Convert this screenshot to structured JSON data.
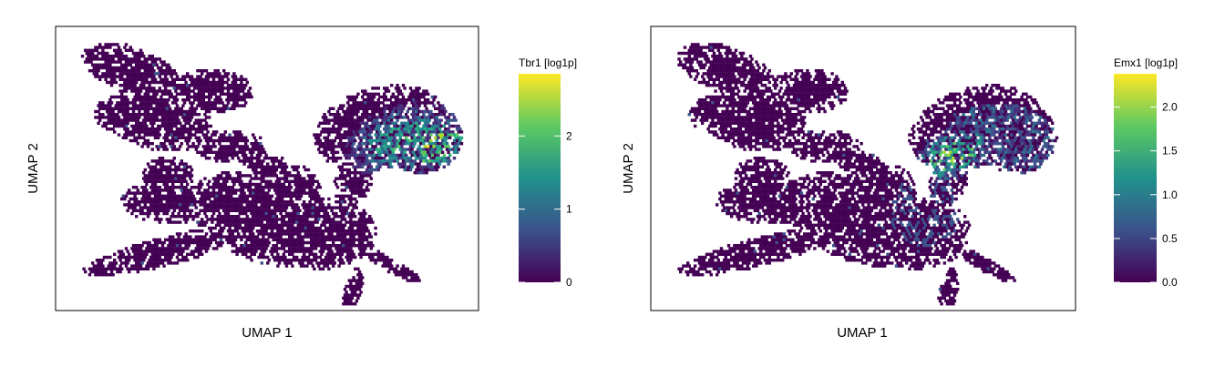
{
  "chart_data": [
    {
      "type": "heatmap",
      "title": "",
      "xlabel": "UMAP 1",
      "ylabel": "UMAP 2",
      "grid": false,
      "legend": {
        "title": "Tbr1 [log1p]",
        "placement": "right",
        "min": 0,
        "max": 2.85,
        "ticks": [
          0,
          1,
          2
        ],
        "tick_labels": [
          "0",
          "1",
          "2"
        ],
        "colormap": [
          "#440154",
          "#3b528b",
          "#21918c",
          "#5ec962",
          "#fde725"
        ]
      },
      "high_expression_region": "right lobe"
    },
    {
      "type": "heatmap",
      "title": "",
      "xlabel": "UMAP 1",
      "ylabel": "UMAP 2",
      "grid": false,
      "legend": {
        "title": "Emx1 [log1p]",
        "placement": "right",
        "min": 0,
        "max": 2.38,
        "ticks": [
          0,
          0.5,
          1.0,
          1.5,
          2.0
        ],
        "tick_labels": [
          "0.0",
          "0.5",
          "1.0",
          "1.5",
          "2.0"
        ],
        "colormap": [
          "#440154",
          "#3b528b",
          "#21918c",
          "#5ec962",
          "#fde725"
        ]
      },
      "high_expression_region": "right lobe neck"
    }
  ]
}
